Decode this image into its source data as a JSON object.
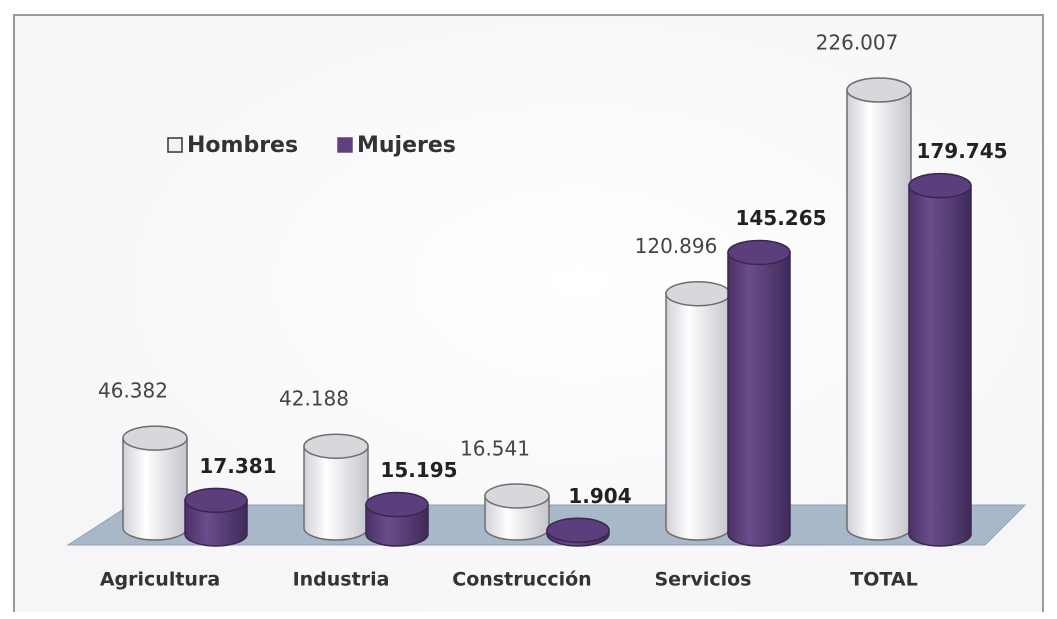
{
  "chart_data": {
    "type": "bar3d",
    "categories": [
      "Agricultura",
      "Industria",
      "Construcción",
      "Servicios",
      "TOTAL"
    ],
    "series": [
      {
        "name": "Hombres",
        "color": "#f2f2f2",
        "values": [
          46382,
          42188,
          16541,
          120896,
          226007
        ],
        "value_labels": [
          "46.382",
          "42.188",
          "16.541",
          "120.896",
          "226.007"
        ]
      },
      {
        "name": "Mujeres",
        "color": "#5e4280",
        "values": [
          17381,
          15195,
          1904,
          145265,
          179745
        ],
        "value_labels": [
          "17.381",
          "15.195",
          "1.904",
          "145.265",
          "179.745"
        ]
      }
    ],
    "legend": "top-left"
  }
}
